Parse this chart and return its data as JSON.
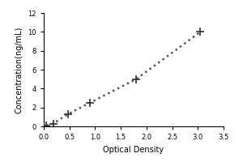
{
  "x_values": [
    0.047,
    0.188,
    0.47,
    0.9,
    1.8,
    3.05
  ],
  "y_values": [
    0.1,
    0.3,
    1.3,
    2.5,
    5.0,
    10.0
  ],
  "xlabel": "Optical Density",
  "ylabel": "Concentration(ng/mL)",
  "xlim": [
    0,
    3.5
  ],
  "ylim": [
    0,
    12
  ],
  "xticks": [
    0,
    0.5,
    1.0,
    1.5,
    2.0,
    2.5,
    3.0,
    3.5
  ],
  "yticks": [
    0,
    2,
    4,
    6,
    8,
    10,
    12
  ],
  "marker": "+",
  "marker_color": "#333333",
  "line_style": "dotted",
  "line_color": "#555555",
  "marker_size": 7,
  "line_width": 1.8,
  "background_color": "#ffffff",
  "xlabel_fontsize": 7,
  "ylabel_fontsize": 7,
  "tick_fontsize": 6
}
